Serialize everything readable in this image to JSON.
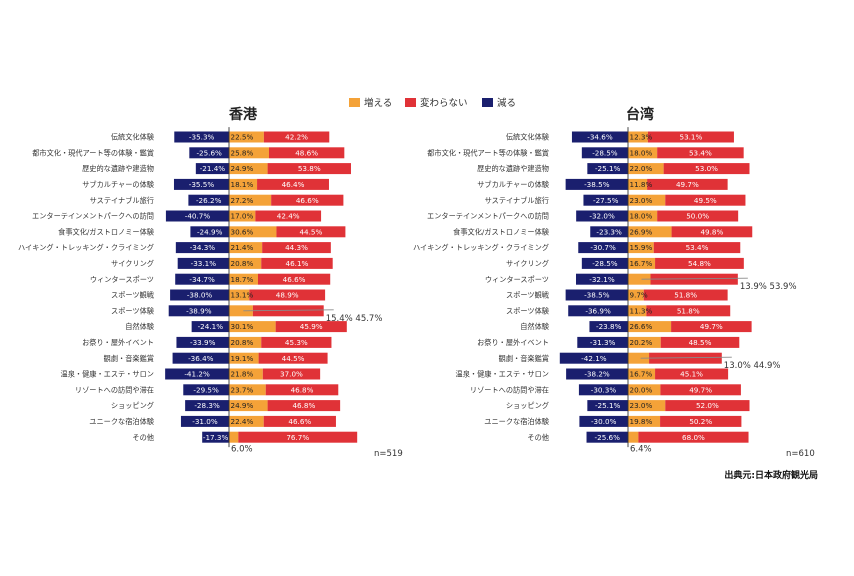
{
  "colors": {
    "increase": "#f4a238",
    "nochange": "#e03237",
    "decrease": "#1a1f6e"
  },
  "legend": [
    "増える",
    "変わらない",
    "減る"
  ],
  "source": "出典元:日本政府観光局",
  "chart_data": [
    {
      "type": "bar",
      "title": "香港",
      "n_label": "n=519",
      "categories": [
        "伝統文化体験",
        "都市文化・現代アート等の体験・鑑賞",
        "歴史的な遺跡や建造物",
        "サブカルチャーの体験",
        "サステイナブル旅行",
        "エンターテインメントパークへの訪問",
        "食事文化/ガストロノミー体験",
        "ハイキング・トレッキング・クライミング",
        "サイクリング",
        "ウィンタースポーツ",
        "スポーツ観戦",
        "スポーツ体験",
        "自然体験",
        "お祭り・屋外イベント",
        "観劇・音楽鑑賞",
        "温泉・健康・エステ・サロン",
        "リゾートへの訪問や滞在",
        "ショッピング",
        "ユニークな宿泊体験",
        "その他"
      ],
      "series": [
        {
          "name": "増える",
          "values": [
            22.5,
            25.8,
            24.9,
            18.1,
            27.2,
            17.0,
            30.6,
            21.4,
            20.8,
            18.7,
            13.1,
            15.4,
            30.1,
            20.8,
            19.1,
            21.8,
            23.7,
            24.9,
            22.4,
            6.0
          ]
        },
        {
          "name": "変わらない",
          "values": [
            42.2,
            48.6,
            53.8,
            46.4,
            46.6,
            42.4,
            44.5,
            44.3,
            46.1,
            46.6,
            48.9,
            45.7,
            45.9,
            45.3,
            44.5,
            37.0,
            46.8,
            46.8,
            46.6,
            76.7
          ]
        },
        {
          "name": "減る",
          "values": [
            -35.3,
            -25.6,
            -21.4,
            -35.5,
            -26.2,
            -40.7,
            -24.9,
            -34.3,
            -33.1,
            -34.7,
            -38.0,
            -38.9,
            -24.1,
            -33.9,
            -36.4,
            -41.2,
            -29.5,
            -28.3,
            -31.0,
            -17.3
          ]
        }
      ],
      "data_labels": {
        "decrease": [
          "-35.3%",
          "-25.6%",
          "-21.4%",
          "-35.5%",
          "-26.2%",
          "-40.7%",
          "-24.9%",
          "-34.3%",
          "-33.1%",
          "-34.7%",
          "-38.0%",
          "-38.9%",
          "-24.1%",
          "-33.9%",
          "-36.4%",
          "-41.2%",
          "-29.5%",
          "-28.3%",
          "-31.0%",
          "-17.3%"
        ],
        "increase": [
          "22.5%",
          "25.8%",
          "24.9%",
          "18.1%",
          "27.2%",
          "17.0%",
          "30.6%",
          "21.4%",
          "20.8%",
          "18.7%",
          "13.1%",
          "",
          "30.1%",
          "20.8%",
          "19.1%",
          "21.8%",
          "23.7%",
          "24.9%",
          "22.4%",
          ""
        ],
        "nochange": [
          "42.2%",
          "48.6%",
          "53.8%",
          "46.4%",
          "46.6%",
          "42.4%",
          "44.5%",
          "44.3%",
          "46.1%",
          "46.6%",
          "48.9%",
          "",
          "45.9%",
          "45.3%",
          "44.5%",
          "37.0%",
          "46.8%",
          "46.8%",
          "46.6%",
          "76.7%"
        ]
      },
      "callouts": [
        {
          "row": 11,
          "text": "15.4%  45.7%"
        },
        {
          "row": 19,
          "text": "6.0%"
        }
      ]
    },
    {
      "type": "bar",
      "title": "台湾",
      "n_label": "n=610",
      "categories": [
        "伝統文化体験",
        "都市文化・現代アート等の体験・鑑賞",
        "歴史的な遺跡や建造物",
        "サブカルチャーの体験",
        "サステイナブル旅行",
        "エンターテインメントパークへの訪問",
        "食事文化/ガストロノミー体験",
        "ハイキング・トレッキング・クライミング",
        "サイクリング",
        "ウィンタースポーツ",
        "スポーツ観戦",
        "スポーツ体験",
        "自然体験",
        "お祭り・屋外イベント",
        "観劇・音楽鑑賞",
        "温泉・健康・エステ・サロン",
        "リゾートへの訪問や滞在",
        "ショッピング",
        "ユニークな宿泊体験",
        "その他"
      ],
      "series": [
        {
          "name": "増える",
          "values": [
            12.3,
            18.0,
            22.0,
            11.8,
            23.0,
            18.0,
            26.9,
            15.9,
            16.7,
            13.9,
            9.7,
            11.3,
            26.6,
            20.2,
            13.0,
            16.7,
            20.0,
            23.0,
            19.8,
            6.4
          ]
        },
        {
          "name": "変わらない",
          "values": [
            53.1,
            53.4,
            53.0,
            49.7,
            49.5,
            50.0,
            49.8,
            53.4,
            54.8,
            53.9,
            51.8,
            51.8,
            49.7,
            48.5,
            44.9,
            45.1,
            49.7,
            52.0,
            50.2,
            68.0
          ]
        },
        {
          "name": "減る",
          "values": [
            -34.6,
            -28.5,
            -25.1,
            -38.5,
            -27.5,
            -32.0,
            -23.3,
            -30.7,
            -28.5,
            -32.1,
            -38.5,
            -36.9,
            -23.8,
            -31.3,
            -42.1,
            -38.2,
            -30.3,
            -25.1,
            -30.0,
            -25.6
          ]
        }
      ],
      "data_labels": {
        "decrease": [
          "-34.6%",
          "-28.5%",
          "-25.1%",
          "-38.5%",
          "-27.5%",
          "-32.0%",
          "-23.3%",
          "-30.7%",
          "-28.5%",
          "-32.1%",
          "-38.5%",
          "-36.9%",
          "-23.8%",
          "-31.3%",
          "-42.1%",
          "-38.2%",
          "-30.3%",
          "-25.1%",
          "-30.0%",
          "-25.6%"
        ],
        "increase": [
          "12.3%",
          "18.0%",
          "22.0%",
          "11.8%",
          "23.0%",
          "18.0%",
          "26.9%",
          "15.9%",
          "16.7%",
          "",
          "9.7%",
          "11.3%",
          "26.6%",
          "20.2%",
          "",
          "16.7%",
          "20.0%",
          "23.0%",
          "19.8%",
          ""
        ],
        "nochange": [
          "53.1%",
          "53.4%",
          "53.0%",
          "49.7%",
          "49.5%",
          "50.0%",
          "49.8%",
          "53.4%",
          "54.8%",
          "",
          "51.8%",
          "51.8%",
          "49.7%",
          "48.5%",
          "",
          "45.1%",
          "49.7%",
          "52.0%",
          "50.2%",
          "68.0%"
        ]
      },
      "callouts": [
        {
          "row": 9,
          "text": "13.9%  53.9%"
        },
        {
          "row": 14,
          "text": "13.0%  44.9%"
        },
        {
          "row": 19,
          "text": "6.4%"
        }
      ]
    }
  ]
}
